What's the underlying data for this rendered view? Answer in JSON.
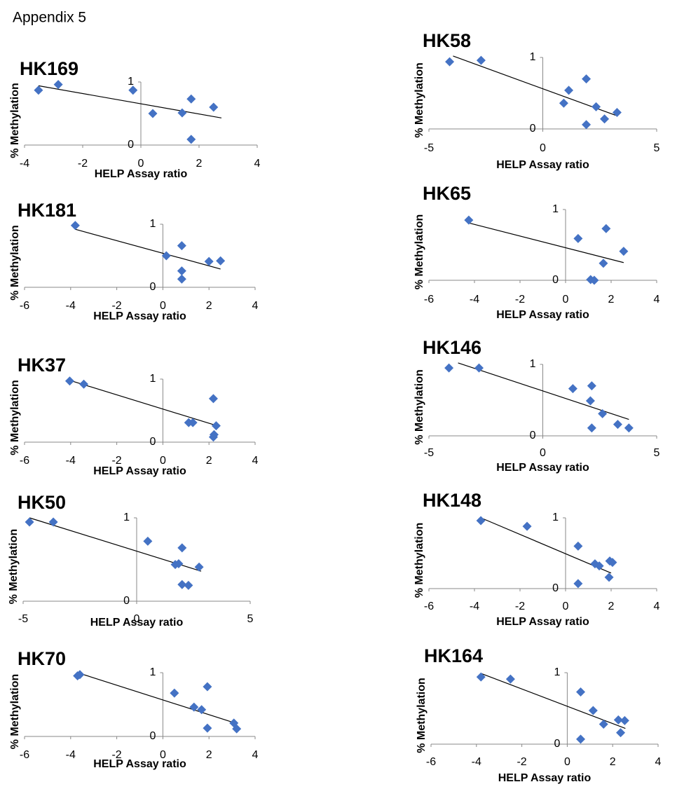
{
  "heading": "Appendix 5",
  "chart_data": [
    {
      "type": "scatter",
      "title": "HK169",
      "y_label": "% Methylation",
      "x_label": "HELP Assay ratio",
      "color": "#4472c4",
      "x": [
        -3.52,
        -2.84,
        -0.27,
        0.41,
        1.42,
        1.73,
        2.5,
        1.73
      ],
      "values": [
        0.87,
        0.96,
        0.87,
        0.5,
        0.51,
        0.73,
        0.6,
        0.09
      ],
      "trendline": {
        "x": [
          -3.52,
          2.77
        ],
        "y": [
          0.94,
          0.43
        ]
      },
      "xlim": [
        -4,
        4
      ],
      "xticks": [
        -4,
        -2,
        0,
        2,
        4
      ],
      "ylim": [
        0,
        1
      ],
      "yticks": [
        0,
        1
      ]
    },
    {
      "type": "scatter",
      "title": "HK58",
      "y_label": "% Methylation",
      "x_label": "HELP Assay ratio",
      "color": "#4472c4",
      "x": [
        -4.09,
        -2.71,
        0.92,
        1.14,
        1.91,
        2.34,
        1.91,
        2.71,
        3.26
      ],
      "values": [
        0.94,
        0.96,
        0.36,
        0.54,
        0.7,
        0.31,
        0.06,
        0.14,
        0.23
      ],
      "trendline": {
        "x": [
          -3.94,
          3.2
        ],
        "y": [
          1.02,
          0.19
        ]
      },
      "xlim": [
        -5,
        5
      ],
      "xticks": [
        -5,
        0,
        5
      ],
      "ylim": [
        0,
        1
      ],
      "yticks": [
        0,
        1
      ]
    },
    {
      "type": "scatter",
      "title": "HK181",
      "y_label": "% Methylation",
      "x_label": "HELP Assay ratio",
      "color": "#4472c4",
      "x": [
        -3.8,
        0.15,
        0.82,
        0.82,
        0.82,
        2.0,
        2.5
      ],
      "values": [
        0.98,
        0.5,
        0.66,
        0.26,
        0.13,
        0.41,
        0.42
      ],
      "trendline": {
        "x": [
          -3.8,
          2.5
        ],
        "y": [
          0.92,
          0.29
        ]
      },
      "xlim": [
        -6,
        4
      ],
      "xticks": [
        -6,
        -4,
        -2,
        0,
        2,
        4
      ],
      "ylim": [
        0,
        1
      ],
      "yticks": [
        0,
        1
      ]
    },
    {
      "type": "scatter",
      "title": "HK65",
      "y_label": "% Methylation",
      "x_label": "HELP Assay ratio",
      "color": "#4472c4",
      "x": [
        -4.25,
        0.55,
        1.78,
        1.1,
        1.26,
        1.66,
        2.55
      ],
      "values": [
        0.85,
        0.59,
        0.73,
        0.01,
        0.0,
        0.24,
        0.41
      ],
      "trendline": {
        "x": [
          -4.25,
          2.55
        ],
        "y": [
          0.81,
          0.25
        ]
      },
      "xlim": [
        -6,
        4
      ],
      "xticks": [
        -6,
        -4,
        -2,
        0,
        2,
        4
      ],
      "ylim": [
        0,
        1
      ],
      "yticks": [
        0,
        1
      ]
    },
    {
      "type": "scatter",
      "title": "HK37",
      "y_label": "% Methylation",
      "x_label": "HELP Assay ratio",
      "color": "#4472c4",
      "x": [
        -4.04,
        -3.43,
        1.12,
        1.3,
        2.19,
        2.31,
        2.22,
        2.19
      ],
      "values": [
        0.97,
        0.92,
        0.31,
        0.31,
        0.69,
        0.26,
        0.12,
        0.08
      ],
      "trendline": {
        "x": [
          -4.04,
          2.35
        ],
        "y": [
          0.98,
          0.26
        ]
      },
      "xlim": [
        -6,
        4
      ],
      "xticks": [
        -6,
        -4,
        -2,
        0,
        2,
        4
      ],
      "ylim": [
        0,
        1
      ],
      "yticks": [
        0,
        1
      ]
    },
    {
      "type": "scatter",
      "title": "HK146",
      "y_label": "% Methylation",
      "x_label": "HELP Assay ratio",
      "color": "#4472c4",
      "x": [
        -4.12,
        -2.8,
        1.32,
        2.15,
        2.09,
        2.15,
        2.62,
        3.29,
        3.78
      ],
      "values": [
        0.95,
        0.95,
        0.66,
        0.7,
        0.49,
        0.11,
        0.31,
        0.16,
        0.11
      ],
      "trendline": {
        "x": [
          -3.72,
          3.78
        ],
        "y": [
          1.02,
          0.23
        ]
      },
      "xlim": [
        -5,
        5
      ],
      "xticks": [
        -5,
        0,
        5
      ],
      "ylim": [
        0,
        1
      ],
      "yticks": [
        0,
        1
      ]
    },
    {
      "type": "scatter",
      "title": "HK50",
      "y_label": "% Methylation",
      "x_label": "HELP Assay ratio",
      "color": "#4472c4",
      "x": [
        -4.72,
        -3.67,
        0.49,
        1.7,
        1.85,
        2.0,
        2.0,
        2.28,
        2.75
      ],
      "values": [
        0.95,
        0.95,
        0.72,
        0.44,
        0.45,
        0.64,
        0.2,
        0.19,
        0.41
      ],
      "trendline": {
        "x": [
          -4.72,
          2.84
        ],
        "y": [
          1.0,
          0.36
        ]
      },
      "xlim": [
        -5,
        5
      ],
      "xticks": [
        -5,
        0,
        5
      ],
      "ylim": [
        0,
        1
      ],
      "yticks": [
        0,
        1
      ]
    },
    {
      "type": "scatter",
      "title": "HK148",
      "y_label": "% Methylation",
      "x_label": "HELP Assay ratio",
      "color": "#4472c4",
      "x": [
        -3.72,
        -1.69,
        0.55,
        0.55,
        1.29,
        1.48,
        1.94,
        2.06,
        1.91
      ],
      "values": [
        0.96,
        0.88,
        0.6,
        0.07,
        0.35,
        0.32,
        0.39,
        0.37,
        0.16
      ],
      "trendline": {
        "x": [
          -3.72,
          2.0
        ],
        "y": [
          1.0,
          0.22
        ]
      },
      "xlim": [
        -6,
        4
      ],
      "xticks": [
        -6,
        -4,
        -2,
        0,
        2,
        4
      ],
      "ylim": [
        0,
        1
      ],
      "yticks": [
        0,
        1
      ]
    },
    {
      "type": "scatter",
      "title": "HK70",
      "y_label": "% Methylation",
      "x_label": "HELP Assay ratio",
      "color": "#4472c4",
      "x": [
        -3.7,
        -3.6,
        0.5,
        1.35,
        1.68,
        1.93,
        1.93,
        3.08,
        3.2
      ],
      "values": [
        0.95,
        0.97,
        0.68,
        0.46,
        0.42,
        0.78,
        0.13,
        0.21,
        0.12
      ],
      "trendline": {
        "x": [
          -3.7,
          3.14
        ],
        "y": [
          1.0,
          0.21
        ]
      },
      "xlim": [
        -6,
        4
      ],
      "xticks": [
        -6,
        -4,
        -2,
        0,
        2,
        4
      ],
      "ylim": [
        0,
        1
      ],
      "yticks": [
        0,
        1
      ]
    },
    {
      "type": "scatter",
      "title": "HK164",
      "y_label": "% Methylation",
      "x_label": "HELP Assay ratio",
      "color": "#4472c4",
      "x": [
        -3.8,
        -2.5,
        0.59,
        1.14,
        1.6,
        2.25,
        2.53,
        2.35,
        0.59
      ],
      "values": [
        0.94,
        0.91,
        0.73,
        0.47,
        0.28,
        0.34,
        0.33,
        0.16,
        0.07
      ],
      "trendline": {
        "x": [
          -3.8,
          2.56
        ],
        "y": [
          0.99,
          0.22
        ]
      },
      "xlim": [
        -6,
        4
      ],
      "xticks": [
        -6,
        -4,
        -2,
        0,
        2,
        4
      ],
      "ylim": [
        0,
        1
      ],
      "yticks": [
        0,
        1
      ]
    }
  ]
}
